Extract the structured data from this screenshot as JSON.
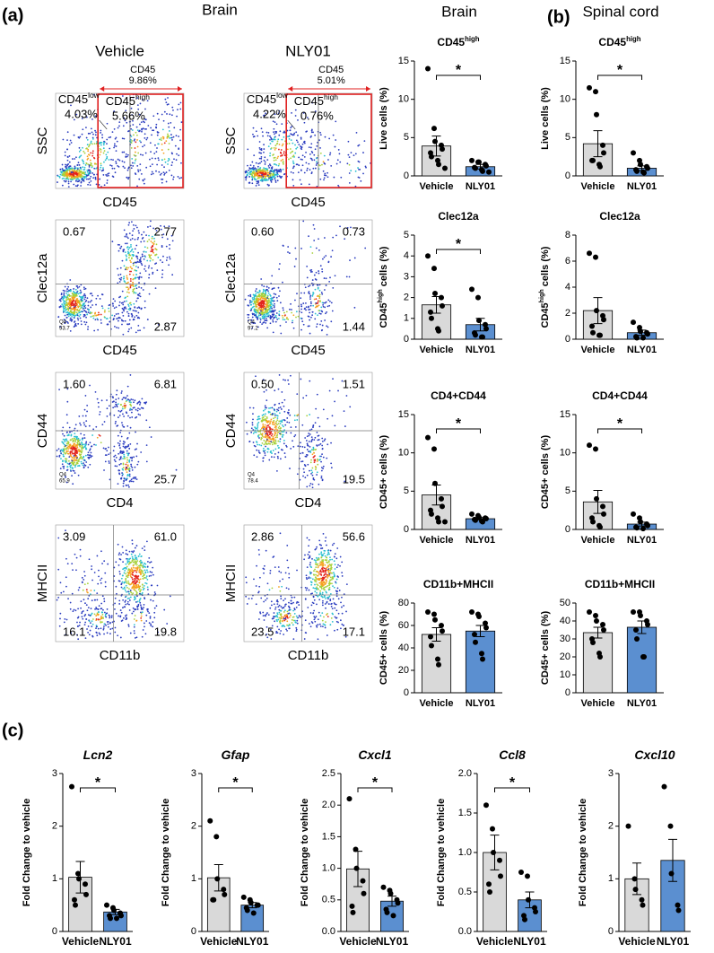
{
  "labels": {
    "panel_a": "(a)",
    "panel_b": "(b)",
    "panel_c": "(c)",
    "brain_flow": "Brain",
    "brain_bars": "Brain",
    "spinal": "Spinal cord"
  },
  "flow": {
    "groups": [
      "Vehicle",
      "NLY01"
    ],
    "gate_row": {
      "ylabel": "SSC",
      "xlabel": "CD45",
      "plots": [
        {
          "total_label": "CD45",
          "total": "9.86%",
          "low_label": "CD45",
          "low_sup": "low",
          "low": "4.03%",
          "high_label": "CD45",
          "high_sup": "high",
          "high": "5.66%"
        },
        {
          "total_label": "CD45",
          "total": "5.01%",
          "low_label": "CD45",
          "low_sup": "low",
          "low": "4.22%",
          "high_label": "CD45",
          "high_sup": "high",
          "high": "0.76%"
        }
      ]
    },
    "quad_rows": [
      {
        "ylabel": "Clec12a",
        "xlabel": "CD45",
        "plots": [
          {
            "tl": "0.67",
            "tr": "2.77",
            "br": "2.87",
            "q4": "Q4",
            "q4_value": "93.7"
          },
          {
            "tl": "0.60",
            "tr": "0.73",
            "br": "1.44",
            "q4": "Q4",
            "q4_value": "97.2"
          }
        ]
      },
      {
        "ylabel": "CD44",
        "xlabel": "CD4",
        "plots": [
          {
            "tl": "1.60",
            "tr": "6.81",
            "br": "25.7",
            "q4": "Q4",
            "q4_value": "65.9"
          },
          {
            "tl": "0.50",
            "tr": "1.51",
            "br": "19.5",
            "q4": "Q4",
            "q4_value": "78.4"
          }
        ]
      },
      {
        "ylabel": "MHCII",
        "xlabel": "CD11b",
        "plots": [
          {
            "tl": "3.09",
            "tr": "61.0",
            "br": "19.8",
            "bl": "16.1"
          },
          {
            "tl": "2.86",
            "tr": "56.6",
            "br": "17.1",
            "bl": "23.5"
          }
        ]
      }
    ]
  },
  "chart_data": [
    {
      "type": "bar",
      "title": "CD45",
      "title_sup": "high",
      "ylabel": "Live cells (%)",
      "categories": [
        "Vehicle",
        "NLY01"
      ],
      "values": [
        3.9,
        1.2
      ],
      "errors": [
        1.3,
        0.3
      ],
      "points": [
        [
          14,
          6.2,
          4.5,
          4,
          3.5,
          3,
          2.5,
          2,
          1.5,
          1
        ],
        [
          2,
          1.8,
          1.8,
          1.5,
          1.3,
          1.1,
          1,
          0.8,
          0.6,
          0.5
        ]
      ],
      "colors": [
        "#d9d9d9",
        "#5b8fd0"
      ],
      "ylim": [
        0,
        15
      ],
      "yticks": [
        0,
        5,
        10,
        15
      ],
      "significance": "*"
    },
    {
      "type": "bar",
      "title": "CD45",
      "title_sup": "high",
      "ylabel": "Live cells (%)",
      "categories": [
        "Vehicle",
        "NLY01"
      ],
      "values": [
        4.2,
        1.0
      ],
      "errors": [
        1.7,
        0.3
      ],
      "points": [
        [
          11.5,
          11,
          8,
          4,
          3,
          2,
          2,
          1.5,
          1.2
        ],
        [
          3,
          2,
          1.5,
          1.2,
          1,
          0.8,
          0.6,
          0.5,
          0.4
        ]
      ],
      "colors": [
        "#d9d9d9",
        "#5b8fd0"
      ],
      "ylim": [
        0,
        15
      ],
      "yticks": [
        0,
        5,
        10,
        15
      ],
      "significance": "*"
    },
    {
      "type": "bar",
      "title": "Clec12a",
      "ylabel": "CD45",
      "ylabel_sup": "high",
      "ylabel_rest": " cells (%)",
      "categories": [
        "Vehicle",
        "NLY01"
      ],
      "values": [
        1.65,
        0.7
      ],
      "errors": [
        0.4,
        0.3
      ],
      "points": [
        [
          4,
          3.4,
          2.2,
          2,
          1.6,
          1.3,
          1,
          0.5,
          0.4
        ],
        [
          2.4,
          2,
          0.9,
          0.7,
          0.5,
          0.3,
          0.2,
          0.1,
          0.1
        ]
      ],
      "colors": [
        "#d9d9d9",
        "#5b8fd0"
      ],
      "ylim": [
        0,
        5
      ],
      "yticks": [
        0,
        1,
        2,
        3,
        4,
        5
      ],
      "significance": "*"
    },
    {
      "type": "bar",
      "title": "Clec12a",
      "ylabel": "CD45",
      "ylabel_sup": "high",
      "ylabel_rest": " cells (%)",
      "categories": [
        "Vehicle",
        "NLY01"
      ],
      "values": [
        2.2,
        0.5
      ],
      "errors": [
        1.0,
        0.2
      ],
      "points": [
        [
          6.6,
          6.3,
          2.2,
          1.8,
          1.5,
          1,
          0.5,
          0.3,
          0.3
        ],
        [
          1.3,
          0.9,
          0.6,
          0.5,
          0.4,
          0.2,
          0.1,
          0.1
        ]
      ],
      "colors": [
        "#d9d9d9",
        "#5b8fd0"
      ],
      "ylim": [
        0,
        8
      ],
      "yticks": [
        0,
        2,
        4,
        6,
        8
      ]
    },
    {
      "type": "bar",
      "title": "CD4+CD44",
      "ylabel": "CD45+ cells (%)",
      "categories": [
        "Vehicle",
        "NLY01"
      ],
      "values": [
        4.5,
        1.4
      ],
      "errors": [
        1.3,
        0.15
      ],
      "points": [
        [
          12,
          10.5,
          6,
          4,
          3,
          2.5,
          2,
          1.5,
          1,
          1
        ],
        [
          2,
          1.8,
          1.6,
          1.5,
          1.4,
          1.3,
          1.2,
          1.1,
          1
        ]
      ],
      "colors": [
        "#d9d9d9",
        "#5b8fd0"
      ],
      "ylim": [
        0,
        15
      ],
      "yticks": [
        0,
        5,
        10,
        15
      ],
      "significance": "*"
    },
    {
      "type": "bar",
      "title": "CD4+CD44",
      "ylabel": "CD45+ cells (%)",
      "categories": [
        "Vehicle",
        "NLY01"
      ],
      "values": [
        3.6,
        0.7
      ],
      "errors": [
        1.5,
        0.25
      ],
      "points": [
        [
          11,
          10.5,
          4,
          3,
          2,
          1.5,
          1,
          0.5,
          0.3
        ],
        [
          2,
          1.5,
          1,
          0.7,
          0.5,
          0.3,
          0.2,
          0.1
        ]
      ],
      "colors": [
        "#d9d9d9",
        "#5b8fd0"
      ],
      "ylim": [
        0,
        15
      ],
      "yticks": [
        0,
        5,
        10,
        15
      ],
      "significance": "*"
    },
    {
      "type": "bar",
      "title": "CD11b+MHCII",
      "ylabel": "CD45+ cells (%)",
      "categories": [
        "Vehicle",
        "NLY01"
      ],
      "values": [
        52,
        55
      ],
      "errors": [
        6,
        5
      ],
      "points": [
        [
          72,
          70,
          65,
          60,
          55,
          50,
          42,
          30,
          25
        ],
        [
          72,
          70,
          68,
          62,
          58,
          52,
          45,
          35,
          30
        ]
      ],
      "colors": [
        "#d9d9d9",
        "#5b8fd0"
      ],
      "ylim": [
        0,
        80
      ],
      "yticks": [
        0,
        20,
        40,
        60,
        80
      ]
    },
    {
      "type": "bar",
      "title": "CD11b+MHCII",
      "ylabel": "CD45+ cells (%)",
      "categories": [
        "Vehicle",
        "NLY01"
      ],
      "values": [
        33.5,
        36.5
      ],
      "errors": [
        3,
        3.5
      ],
      "points": [
        [
          45,
          43,
          40,
          38,
          35,
          30,
          28,
          22,
          20
        ],
        [
          45,
          45,
          43,
          40,
          38,
          35,
          30,
          20,
          20
        ]
      ],
      "colors": [
        "#d9d9d9",
        "#5b8fd0"
      ],
      "ylim": [
        0,
        50
      ],
      "yticks": [
        0,
        10,
        20,
        30,
        40,
        50
      ]
    },
    {
      "type": "bar",
      "title": "Lcn2",
      "title_style": "italic",
      "ylabel": "Fold Change to vehicle",
      "categories": [
        "Vehicle",
        "NLY01"
      ],
      "values": [
        1.03,
        0.37
      ],
      "errors": [
        0.3,
        0.05
      ],
      "points": [
        [
          2.75,
          1.1,
          1,
          0.9,
          0.7,
          0.6,
          0.5
        ],
        [
          0.5,
          0.45,
          0.4,
          0.35,
          0.3,
          0.3,
          0.25,
          0.25
        ]
      ],
      "colors": [
        "#d9d9d9",
        "#5b8fd0"
      ],
      "ylim": [
        0,
        3
      ],
      "yticks": [
        0,
        1,
        2,
        3
      ],
      "significance": "*"
    },
    {
      "type": "bar",
      "title": "Gfap",
      "title_style": "italic",
      "ylabel": "Fold Change to vehicle",
      "categories": [
        "Vehicle",
        "NLY01"
      ],
      "values": [
        1.02,
        0.5
      ],
      "errors": [
        0.25,
        0.05
      ],
      "points": [
        [
          2.1,
          1.8,
          1,
          0.8,
          0.7,
          0.6,
          0.6
        ],
        [
          0.65,
          0.6,
          0.55,
          0.5,
          0.5,
          0.45,
          0.4,
          0.35
        ]
      ],
      "colors": [
        "#d9d9d9",
        "#5b8fd0"
      ],
      "ylim": [
        0,
        3
      ],
      "yticks": [
        0,
        1,
        2,
        3
      ],
      "significance": "*"
    },
    {
      "type": "bar",
      "title": "Cxcl1",
      "title_style": "italic",
      "ylabel": "Fold Change to vehicle",
      "categories": [
        "Vehicle",
        "NLY01"
      ],
      "values": [
        0.99,
        0.48
      ],
      "errors": [
        0.28,
        0.08
      ],
      "points": [
        [
          2.1,
          1.3,
          1,
          0.8,
          0.6,
          0.4,
          0.3
        ],
        [
          0.7,
          0.65,
          0.6,
          0.5,
          0.45,
          0.35,
          0.3,
          0.25
        ]
      ],
      "colors": [
        "#d9d9d9",
        "#5b8fd0"
      ],
      "ylim": [
        0,
        2.5
      ],
      "yticks": [
        {
          "value": 0,
          "label": "0.0"
        },
        {
          "value": 0.5,
          "label": "0.5"
        },
        {
          "value": 1,
          "label": "1.0"
        },
        {
          "value": 1.5,
          "label": "1.5"
        },
        {
          "value": 2,
          "label": "2.0"
        },
        {
          "value": 2.5,
          "label": "2.5"
        }
      ],
      "significance": "*"
    },
    {
      "type": "bar",
      "title": "Ccl8",
      "title_style": "italic",
      "ylabel": "Fold Change to vehicle",
      "categories": [
        "Vehicle",
        "NLY01"
      ],
      "values": [
        1.0,
        0.4
      ],
      "errors": [
        0.22,
        0.1
      ],
      "points": [
        [
          1.6,
          1.3,
          1,
          0.9,
          0.7,
          0.6,
          0.5
        ],
        [
          0.75,
          0.7,
          0.4,
          0.3,
          0.25,
          0.2,
          0.15
        ]
      ],
      "colors": [
        "#d9d9d9",
        "#5b8fd0"
      ],
      "ylim": [
        0,
        2
      ],
      "yticks": [
        {
          "value": 0,
          "label": "0.0"
        },
        {
          "value": 0.5,
          "label": "0.5"
        },
        {
          "value": 1,
          "label": "1.0"
        },
        {
          "value": 1.5,
          "label": "1.5"
        },
        {
          "value": 2,
          "label": "2.0"
        }
      ],
      "significance": "*"
    },
    {
      "type": "bar",
      "title": "Cxcl10",
      "title_style": "italic",
      "ylabel": "Fold Change to vehicle",
      "categories": [
        "Vehicle",
        "NLY01"
      ],
      "values": [
        1.0,
        1.35
      ],
      "errors": [
        0.3,
        0.4
      ],
      "points": [
        [
          2.0,
          1.0,
          0.8,
          0.6,
          0.5
        ],
        [
          2.75,
          2.0,
          1.1,
          0.5,
          0.4
        ]
      ],
      "colors": [
        "#d9d9d9",
        "#5b8fd0"
      ],
      "ylim": [
        0,
        3
      ],
      "yticks": [
        0,
        1,
        2,
        3
      ]
    }
  ]
}
